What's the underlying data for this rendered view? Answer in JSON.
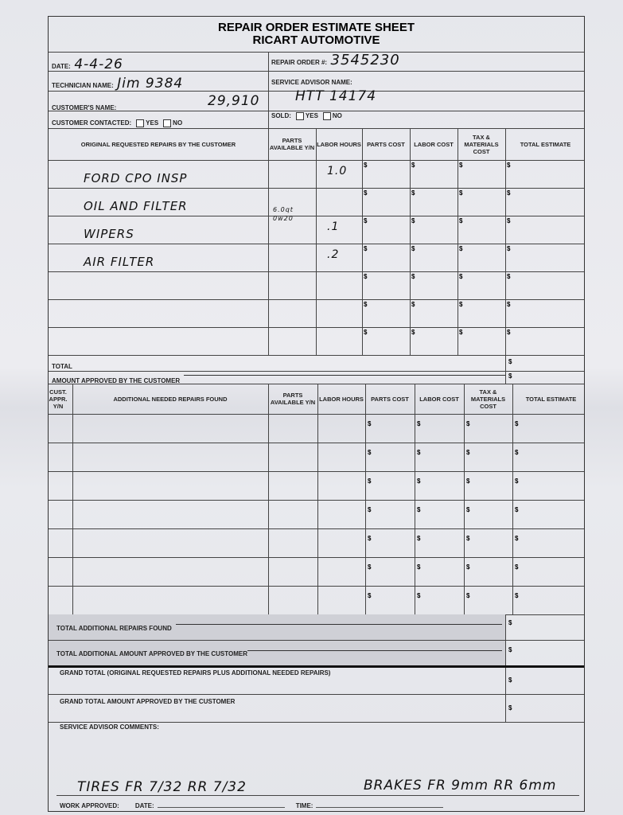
{
  "title": "REPAIR ORDER ESTIMATE SHEET",
  "subtitle": "RICART AUTOMOTIVE",
  "fields": {
    "date_label": "DATE:",
    "date_value": "4-4-26",
    "repair_order_label": "REPAIR ORDER #:",
    "repair_order_value": "3545230",
    "technician_label": "TECHNICIAN NAME:",
    "technician_value": "Jim 9384",
    "service_advisor_label": "SERVICE ADVISOR NAME:",
    "service_advisor_value": "HTT 14174",
    "customer_label": "CUSTOMER'S NAME:",
    "customer_value": "29,910",
    "contacted_label": "CUSTOMER CONTACTED:",
    "sold_label": "SOLD:",
    "yes": "YES",
    "no": "NO"
  },
  "currency_symbol": "$",
  "original": {
    "headers": [
      "ORIGINAL REQUESTED REPAIRS BY THE CUSTOMER",
      "PARTS AVAILABLE Y/N",
      "LABOR HOURS",
      "PARTS COST",
      "LABOR COST",
      "TAX & MATERIALS COST",
      "TOTAL ESTIMATE"
    ],
    "rows": [
      {
        "desc": "FORD CPO INSP",
        "parts": "",
        "hours": "1.0"
      },
      {
        "desc": "OIL AND FILTER",
        "parts": "6.0qt 0w20",
        "hours": ""
      },
      {
        "desc": "WIPERS",
        "parts": "",
        "hours": ".1"
      },
      {
        "desc": "AIR FILTER",
        "parts": "",
        "hours": ".2"
      },
      {
        "desc": "",
        "parts": "",
        "hours": ""
      },
      {
        "desc": "",
        "parts": "",
        "hours": ""
      },
      {
        "desc": "",
        "parts": "",
        "hours": ""
      }
    ],
    "total_label": "TOTAL",
    "approved_label": "AMOUNT APPROVED BY THE CUSTOMER"
  },
  "additional": {
    "headers": [
      "CUST. APPR. Y/N",
      "ADDITIONAL NEEDED REPAIRS FOUND",
      "PARTS AVAILABLE Y/N",
      "LABOR HOURS",
      "PARTS COST",
      "LABOR COST",
      "TAX & MATERIALS COST",
      "TOTAL ESTIMATE"
    ],
    "row_count": 7,
    "total_label": "TOTAL ADDITIONAL REPAIRS FOUND",
    "approved_label": "TOTAL ADDITIONAL AMOUNT APPROVED BY THE CUSTOMER"
  },
  "grand_total_label": "GRAND TOTAL (Original requested repairs plus additional needed repairs)",
  "grand_approved_label": "GRAND TOTAL AMOUNT APPROVED BY THE CUSTOMER",
  "comments_label": "SERVICE ADVISOR COMMENTS:",
  "comments_value_tires": "TIRES FR 7/32  RR 7/32",
  "comments_value_brakes": "BRAKES FR 9mm  RR 6mm",
  "work_approved_label": "WORK APPROVED:",
  "work_date_label": "DATE:",
  "work_time_label": "TIME:"
}
